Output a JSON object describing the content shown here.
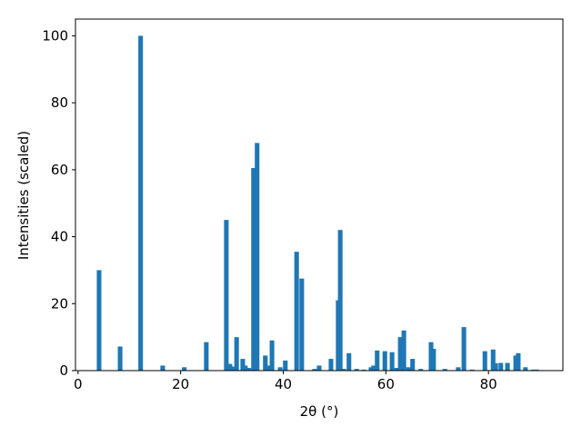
{
  "chart_data": {
    "type": "bar",
    "x_label": "2θ (°)",
    "y_label": "Intensities (scaled)",
    "color": "#1f77b4",
    "x": [
      4.1,
      8.2,
      12.2,
      16.5,
      20.7,
      25.0,
      28.9,
      29.6,
      30.1,
      30.9,
      32.1,
      32.6,
      33.3,
      34.2,
      34.9,
      36.5,
      37.2,
      37.8,
      39.4,
      40.4,
      42.6,
      43.6,
      46.1,
      47.0,
      49.3,
      50.7,
      51.1,
      51.8,
      52.8,
      54.3,
      55.7,
      57.1,
      57.6,
      58.3,
      59.8,
      61.2,
      62.1,
      62.8,
      63.5,
      64.4,
      65.2,
      66.8,
      68.8,
      69.3,
      71.5,
      74.1,
      75.2,
      76.8,
      79.3,
      80.9,
      81.4,
      82.4,
      83.7,
      85.3,
      85.8,
      87.2,
      88.7,
      89.4
    ],
    "values": [
      30,
      7.2,
      100,
      1.5,
      1.0,
      8.5,
      45,
      2,
      1.2,
      10,
      3.5,
      1.5,
      0.8,
      60.5,
      68,
      4.5,
      1.5,
      9,
      1,
      3,
      35.5,
      27.5,
      0.5,
      1.5,
      3.5,
      21,
      42,
      0.5,
      5.2,
      0.5,
      0.3,
      1,
      1.5,
      6,
      5.8,
      5.5,
      0.8,
      10,
      12,
      1,
      3.5,
      0.5,
      8.5,
      6.5,
      0.5,
      1,
      13,
      0.3,
      5.8,
      6.3,
      2.2,
      2.3,
      2.3,
      4.5,
      5.2,
      1,
      0.3,
      0.3
    ],
    "xlim": [
      -0.5,
      94.5
    ],
    "ylim": [
      0,
      105
    ],
    "xticks": [
      0,
      20,
      40,
      60,
      80
    ],
    "yticks": [
      0,
      20,
      40,
      60,
      80,
      100
    ]
  }
}
